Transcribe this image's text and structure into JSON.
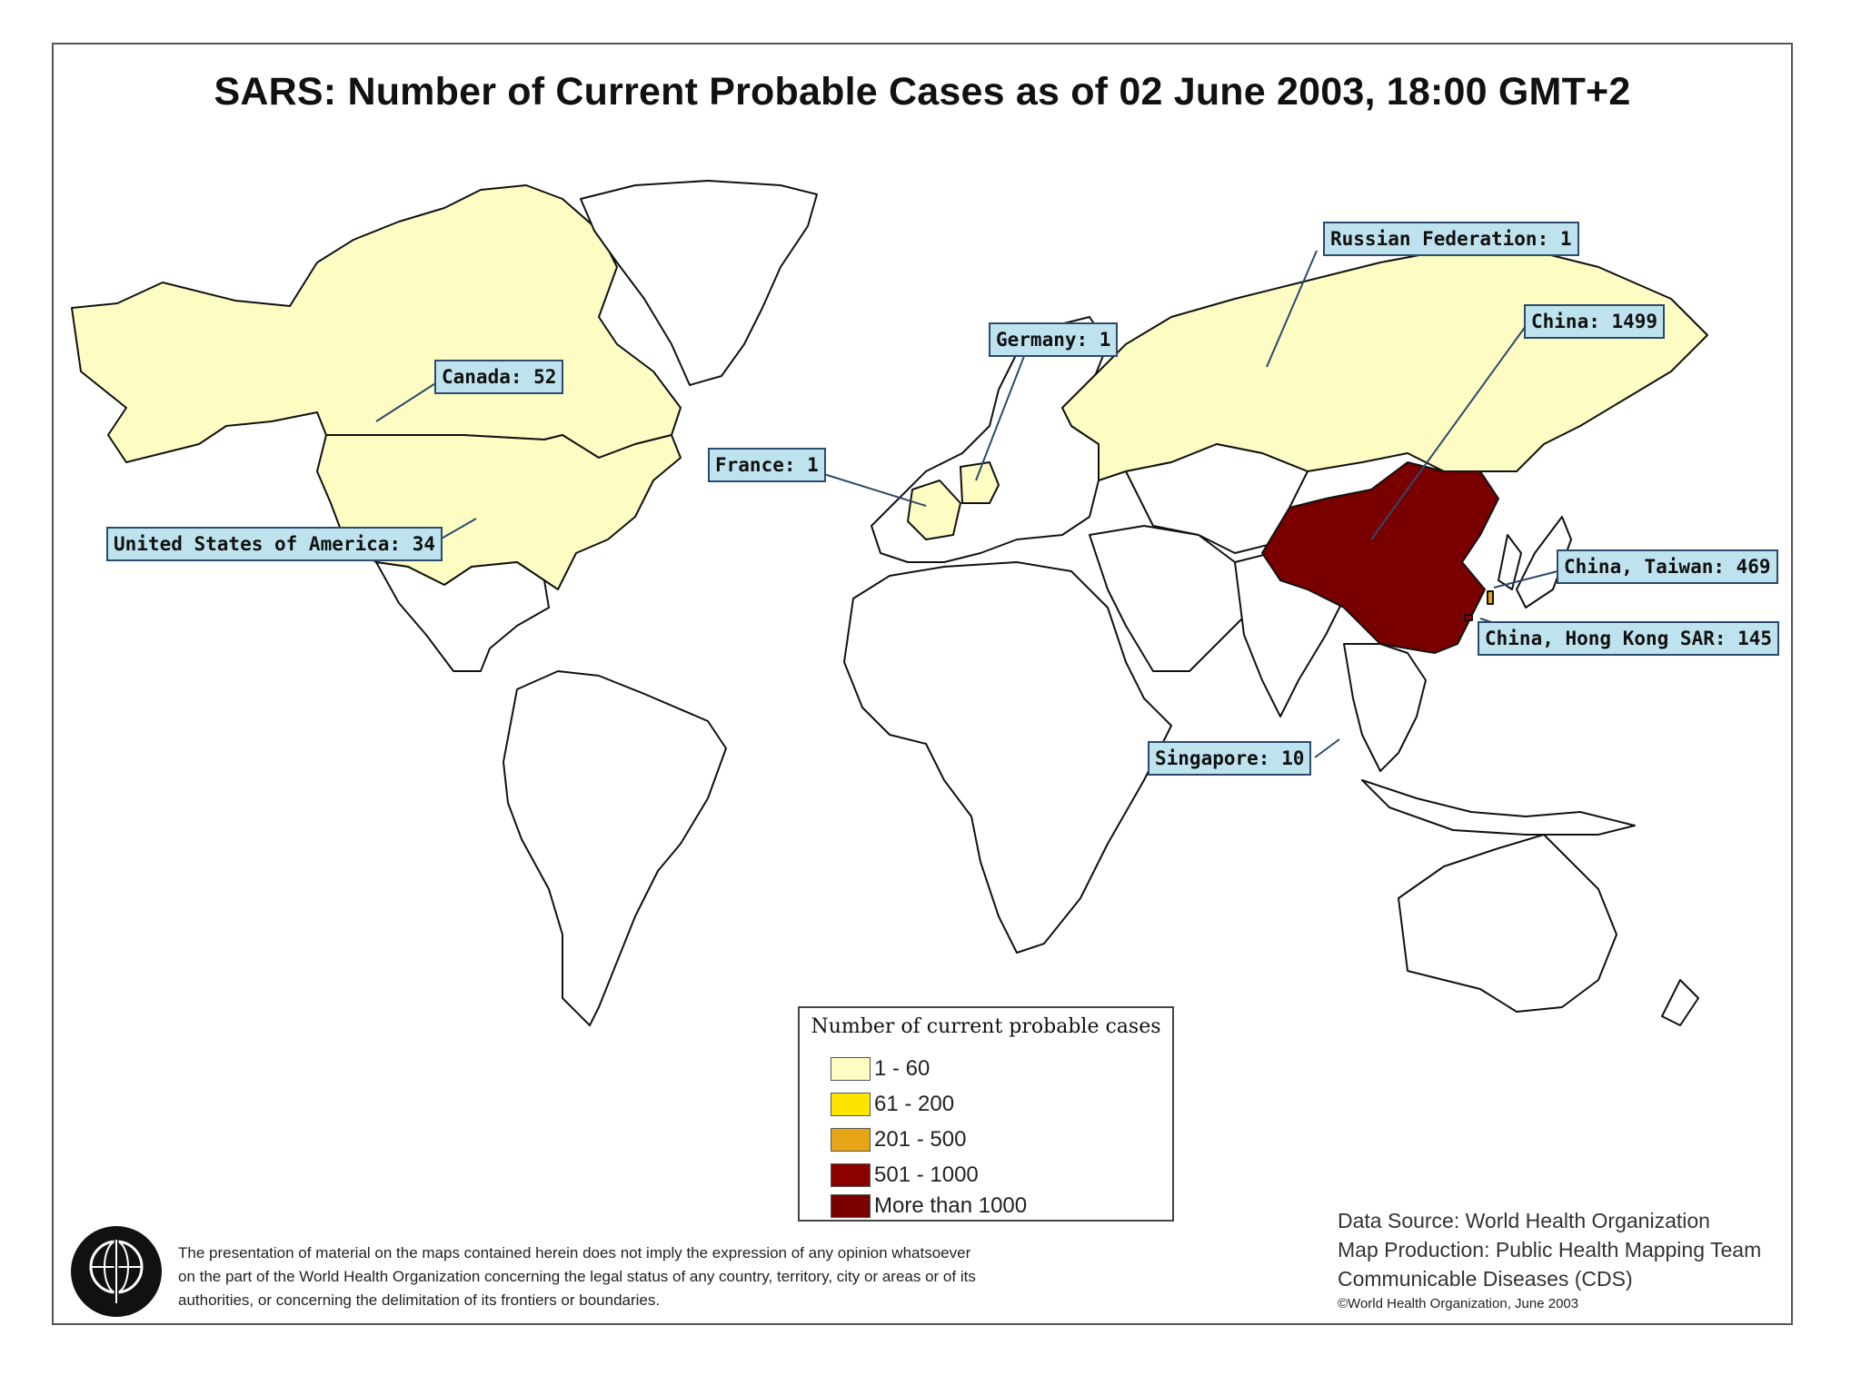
{
  "title": "SARS: Number of Current Probable Cases as of 02 June 2003, 18:00 GMT+2",
  "colors": {
    "cat_1_60": "#fdfcc2",
    "cat_61_200": "#ffe400",
    "cat_201_500": "#e8a417",
    "cat_501_1000": "#8b0000",
    "cat_more_1000": "#7a0000",
    "callout_bg": "#bfe3ee",
    "no_cases": "#ffffff"
  },
  "callouts": {
    "russia": "Russian Federation: 1",
    "china": "China: 1499",
    "germany": "Germany: 1",
    "canada": "Canada: 52",
    "france": "France: 1",
    "usa": "United States of America: 34",
    "taiwan": "China, Taiwan: 469",
    "hongkong": "China, Hong Kong SAR: 145",
    "singapore": "Singapore: 10"
  },
  "legend": {
    "title": "Number of current probable cases",
    "items": [
      {
        "label": "1 - 60",
        "color": "#fdfcc2"
      },
      {
        "label": "61 - 200",
        "color": "#ffe400"
      },
      {
        "label": "201 - 500",
        "color": "#e8a417"
      },
      {
        "label": "501 - 1000",
        "color": "#8b0000"
      },
      {
        "label": "More than 1000",
        "color": "#7a0000"
      }
    ]
  },
  "credits": {
    "line1": "Data Source: World Health Organization",
    "line2": "Map Production: Public Health Mapping Team",
    "line3": "Communicable Diseases (CDS)",
    "copyright": "©World Health Organization, June 2003"
  },
  "disclaimer": {
    "line1": "The presentation of material on the maps contained herein does not imply the expression of any opinion whatsoever",
    "line2": "on the part of the World Health Organization concerning the legal status of any country, territory, city or areas or of its",
    "line3": "authorities, or concerning the delimitation of its frontiers or boundaries."
  },
  "emblem_icon": "who-emblem-icon"
}
